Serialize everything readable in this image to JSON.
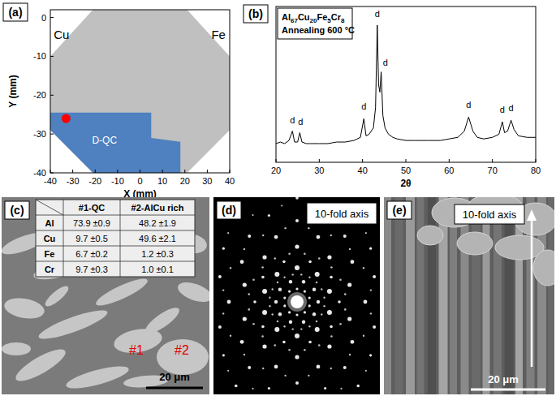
{
  "panel_labels": [
    "(a)",
    "(b)",
    "(c)",
    "(d)",
    "(e)"
  ],
  "chart_data": [
    {
      "type": "polygon",
      "xlabel": "X (mm)",
      "ylabel": "Y (mm)",
      "xlim": [
        -40,
        40
      ],
      "ylim": [
        -40,
        2
      ],
      "xticks": [
        -40,
        -30,
        -20,
        -10,
        0,
        10,
        20,
        30,
        40
      ],
      "yticks": [
        -40,
        -30,
        -20,
        -10,
        0
      ],
      "grid": false,
      "tick_labels": true,
      "series": [
        {
          "color": "#c0c0c0",
          "x": [
            -21,
            21,
            40,
            40,
            21,
            -21,
            -40,
            -40
          ],
          "y": [
            2,
            2,
            -10,
            -29,
            -40,
            -40,
            -29,
            -10
          ]
        },
        {
          "name": "D-QC",
          "color": "#4f80bf",
          "x": [
            -40,
            5,
            5,
            18,
            18,
            -21,
            -40
          ],
          "y": [
            -24.5,
            -24.5,
            -31,
            -32,
            -40,
            -40,
            -29
          ]
        },
        {
          "type": "scatter",
          "color": "#ff0000",
          "marker": "circle",
          "x": [
            -33
          ],
          "y": [
            -26
          ]
        }
      ],
      "annotations": [
        {
          "text": "Cu",
          "x": -35,
          "y": -3
        },
        {
          "text": "Fe",
          "x": 35,
          "y": -3
        }
      ]
    },
    {
      "type": "line",
      "title": "Al67Cu20Fe5Cr8",
      "subtitle": "Annealing 600 °C",
      "xlabel": "2θ",
      "xlim": [
        20,
        80
      ],
      "ylim": [
        0,
        100
      ],
      "xticks": [
        20,
        30,
        40,
        50,
        60,
        70,
        80
      ],
      "grid": false,
      "tick_labels": "x",
      "color": "#000000",
      "x": [
        20,
        21,
        22,
        23,
        23.8,
        24.3,
        25,
        25.5,
        26,
        27,
        28,
        30,
        32,
        34,
        36,
        38,
        39.5,
        40.3,
        40.8,
        41.5,
        42.5,
        43,
        43.4,
        43.7,
        44,
        44.3,
        44.7,
        45.2,
        46,
        47,
        48,
        50,
        52,
        55,
        58,
        60,
        62,
        63.5,
        64.5,
        65.5,
        66.5,
        68,
        70,
        71.5,
        72.3,
        72.8,
        73.5,
        74.3,
        75,
        76,
        78,
        80
      ],
      "values": [
        12,
        13,
        12,
        14,
        20,
        13,
        13,
        19,
        13,
        12,
        12,
        12,
        12,
        13,
        13,
        14,
        16,
        28,
        17,
        18,
        22,
        35,
        88,
        50,
        45,
        58,
        30,
        22,
        18,
        16,
        15,
        14,
        14,
        14,
        14,
        15,
        16,
        20,
        29,
        20,
        16,
        15,
        16,
        18,
        26,
        19,
        20,
        27,
        21,
        17,
        16,
        16
      ],
      "annotations": [
        {
          "text": "d",
          "x": 23.8,
          "y": 25
        },
        {
          "text": "d",
          "x": 25.7,
          "y": 24
        },
        {
          "text": "d",
          "x": 40.3,
          "y": 34
        },
        {
          "text": "d",
          "x": 43.4,
          "y": 93
        },
        {
          "text": "d",
          "x": 45.3,
          "y": 62
        },
        {
          "text": "d",
          "x": 64.5,
          "y": 35
        },
        {
          "text": "d",
          "x": 72.3,
          "y": 32
        },
        {
          "text": "d",
          "x": 74.3,
          "y": 33
        }
      ]
    }
  ],
  "micrograph_c": {
    "table": {
      "header": [
        "#1-QC",
        "#2-AlCu rich"
      ],
      "rows": [
        [
          "Al",
          "73.9 ±0.9",
          "48.2 ±1.9"
        ],
        [
          "Cu",
          "9.7 ±0.5",
          "49.6 ±2.1"
        ],
        [
          "Fe",
          "6.7 ±0.2",
          "1.2 ±0.3"
        ],
        [
          "Cr",
          "9.7 ±0.3",
          "1.0 ±0.1"
        ]
      ]
    },
    "markers": [
      "#1",
      "#2"
    ],
    "scale_bar": "20 μm"
  },
  "diffraction_d": {
    "label": "10-fold axis"
  },
  "micrograph_e": {
    "label": "10-fold axis",
    "scale_bar": "20 μm"
  }
}
